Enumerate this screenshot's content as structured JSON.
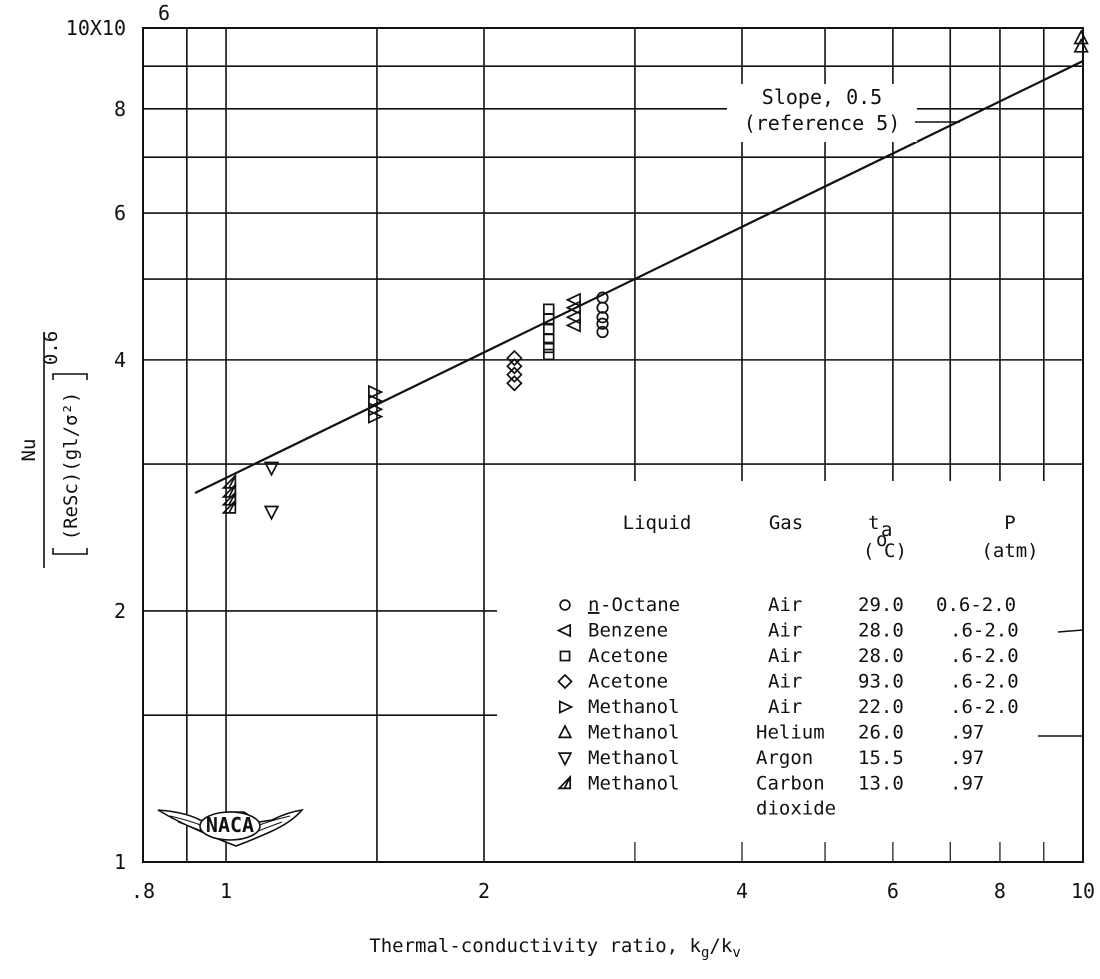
{
  "chart_data": {
    "type": "scatter",
    "x_scale": "log",
    "y_scale": "log",
    "xlim": [
      0.8,
      10
    ],
    "ylim": [
      1,
      10
    ],
    "grid": true,
    "xlabel": "Thermal-conductivity ratio, k",
    "xlabel_sub1": "g",
    "xlabel_mid": "/k",
    "xlabel_sub2": "v",
    "ylabel_numerator": "Nu",
    "ylabel_denominator": "(ReSc)(gl/σ²)",
    "ylabel_exponent": "0.6",
    "x_ticks": [
      {
        "value": 0.8,
        "label": ".8"
      },
      {
        "value": 1,
        "label": "1"
      },
      {
        "value": 2,
        "label": "2"
      },
      {
        "value": 4,
        "label": "4"
      },
      {
        "value": 6,
        "label": "6"
      },
      {
        "value": 8,
        "label": "8"
      },
      {
        "value": 10,
        "label": "10"
      }
    ],
    "y_ticks": [
      {
        "value": 1,
        "label": "1"
      },
      {
        "value": 2,
        "label": "2"
      },
      {
        "value": 4,
        "label": "4"
      },
      {
        "value": 6,
        "label": "6"
      },
      {
        "value": 8,
        "label": "8"
      },
      {
        "value": 10,
        "label": "10X10"
      }
    ],
    "y_top_exponent": "6",
    "x_grid": [
      0.9,
      1,
      1.5,
      2,
      3,
      4,
      5,
      6,
      7,
      8,
      9,
      10
    ],
    "y_grid": [
      1.5,
      2,
      3,
      4,
      5,
      6,
      7,
      8,
      9,
      10
    ],
    "fit_line": {
      "slope": 0.5,
      "points": [
        [
          0.92,
          2.77
        ],
        [
          10,
          9.13
        ]
      ],
      "annotation_lines": [
        "Slope, 0.5",
        "(reference 5)"
      ]
    },
    "series": [
      {
        "name": "n-Octane",
        "marker": "circle",
        "points": [
          [
            2.75,
            4.75
          ],
          [
            2.75,
            4.62
          ],
          [
            2.75,
            4.5
          ],
          [
            2.75,
            4.42
          ],
          [
            2.75,
            4.32
          ]
        ]
      },
      {
        "name": "Benzene",
        "marker": "triangle-left",
        "points": [
          [
            2.55,
            4.72
          ],
          [
            2.55,
            4.62
          ],
          [
            2.55,
            4.5
          ],
          [
            2.55,
            4.4
          ]
        ]
      },
      {
        "name": "Acetone (Air, 28.0)",
        "marker": "square",
        "points": [
          [
            2.38,
            4.6
          ],
          [
            2.38,
            4.48
          ],
          [
            2.38,
            4.35
          ],
          [
            2.38,
            4.24
          ],
          [
            2.38,
            4.14
          ],
          [
            2.38,
            4.06
          ]
        ]
      },
      {
        "name": "Acetone (Air, 93.0)",
        "marker": "diamond",
        "points": [
          [
            2.17,
            4.02
          ],
          [
            2.17,
            3.93
          ],
          [
            2.17,
            3.84
          ],
          [
            2.17,
            3.75
          ]
        ]
      },
      {
        "name": "Methanol (Air)",
        "marker": "triangle-right",
        "points": [
          [
            1.49,
            3.66
          ],
          [
            1.49,
            3.57
          ],
          [
            1.49,
            3.49
          ],
          [
            1.49,
            3.42
          ]
        ]
      },
      {
        "name": "Methanol (Helium)",
        "marker": "triangle-up",
        "points": [
          [
            9.95,
            9.72
          ],
          [
            9.95,
            9.5
          ]
        ]
      },
      {
        "name": "Methanol (Argon)",
        "marker": "triangle-down",
        "points": [
          [
            1.13,
            2.97
          ],
          [
            1.13,
            2.63
          ]
        ]
      },
      {
        "name": "Methanol (Carbon dioxide)",
        "marker": "half-triangle",
        "points": [
          [
            1.01,
            2.85
          ],
          [
            1.01,
            2.78
          ],
          [
            1.01,
            2.72
          ],
          [
            1.01,
            2.66
          ]
        ]
      }
    ],
    "legend": {
      "placement": "bottom-right",
      "headers": {
        "liquid": "Liquid",
        "gas": "Gas",
        "temp_main": "t",
        "temp_sub": "a",
        "temp_unit_open": "(",
        "temp_unit_deg": "o",
        "temp_unit_c": "C)",
        "pressure": "P",
        "pressure_unit": "(atm)"
      },
      "rows": [
        {
          "marker": "circle",
          "liquid_prefix": "n",
          "liquid": "-Octane",
          "gas": "Air",
          "temp": "29.0",
          "pressure": "0.6-2.0"
        },
        {
          "marker": "triangle-left",
          "liquid_prefix": "",
          "liquid": "Benzene",
          "gas": "Air",
          "temp": "28.0",
          "pressure": ".6-2.0"
        },
        {
          "marker": "square",
          "liquid_prefix": "",
          "liquid": "Acetone",
          "gas": "Air",
          "temp": "28.0",
          "pressure": ".6-2.0"
        },
        {
          "marker": "diamond",
          "liquid_prefix": "",
          "liquid": "Acetone",
          "gas": "Air",
          "temp": "93.0",
          "pressure": ".6-2.0"
        },
        {
          "marker": "triangle-right",
          "liquid_prefix": "",
          "liquid": "Methanol",
          "gas": "Air",
          "temp": "22.0",
          "pressure": ".6-2.0"
        },
        {
          "marker": "triangle-up",
          "liquid_prefix": "",
          "liquid": "Methanol",
          "gas": "Helium",
          "temp": "26.0",
          "pressure": ".97"
        },
        {
          "marker": "triangle-down",
          "liquid_prefix": "",
          "liquid": "Methanol",
          "gas": "Argon",
          "temp": "15.5",
          "pressure": ".97"
        },
        {
          "marker": "half-triangle",
          "liquid_prefix": "",
          "liquid": "Methanol",
          "gas": "Carbon",
          "gas_line2": "dioxide",
          "temp": "13.0",
          "pressure": ".97"
        }
      ]
    },
    "logo_text": "NACA"
  }
}
